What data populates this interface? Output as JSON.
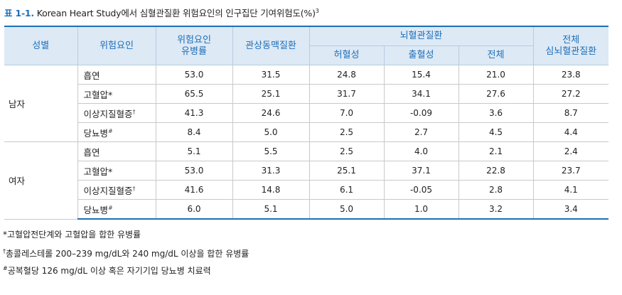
{
  "caption": {
    "label": "표 1-1.",
    "text": "Korean Heart Study에서 심혈관질환 위험요인의 인구집단 기여위험도(%)",
    "sup": "3"
  },
  "headers": {
    "sex": "성별",
    "risk_factor": "위험요인",
    "prevalence_l1": "위험요인",
    "prevalence_l2": "유병률",
    "coronary": "관상동맥질환",
    "cerebro": "뇌혈관질환",
    "ischemic": "허혈성",
    "hemorrhagic": "출혈성",
    "cerebro_total": "전체",
    "total_l1": "전체",
    "total_l2": "심뇌혈관질환"
  },
  "groups": [
    {
      "sex": "남자",
      "rows": [
        {
          "factor": "흡연",
          "mark": "",
          "values": [
            "53.0",
            "31.5",
            "24.8",
            "15.4",
            "21.0",
            "23.8"
          ]
        },
        {
          "factor": "고혈압*",
          "mark": "",
          "values": [
            "65.5",
            "25.1",
            "31.7",
            "34.1",
            "27.6",
            "27.2"
          ]
        },
        {
          "factor": "이상지질혈증",
          "mark": "†",
          "values": [
            "41.3",
            "24.6",
            "7.0",
            "-0.09",
            "3.6",
            "8.7"
          ]
        },
        {
          "factor": "당뇨병",
          "mark": "#",
          "values": [
            "8.4",
            "5.0",
            "2.5",
            "2.7",
            "4.5",
            "4.4"
          ]
        }
      ]
    },
    {
      "sex": "여자",
      "rows": [
        {
          "factor": "흡연",
          "mark": "",
          "values": [
            "5.1",
            "5.5",
            "2.5",
            "4.0",
            "2.1",
            "2.4"
          ]
        },
        {
          "factor": "고혈압*",
          "mark": "",
          "values": [
            "53.0",
            "31.3",
            "25.1",
            "37.1",
            "22.8",
            "23.7"
          ]
        },
        {
          "factor": "이상지질혈증",
          "mark": "†",
          "values": [
            "41.6",
            "14.8",
            "6.1",
            "-0.05",
            "2.8",
            "4.1"
          ]
        },
        {
          "factor": "당뇨병",
          "mark": "#",
          "values": [
            "6.0",
            "5.1",
            "5.0",
            "1.0",
            "3.2",
            "3.4"
          ]
        }
      ]
    }
  ],
  "footnotes": [
    {
      "mark": "",
      "text": "*고혈압전단계와 고혈압을 합한 유병률"
    },
    {
      "mark": "†",
      "text": "총콜레스테롤 200–239 mg/dL와 240 mg/dL 이상을 합한 유병률"
    },
    {
      "mark": "#",
      "text": "공복혈당 126 mg/dL 이상 혹은 자기기입 당뇨병 치료력"
    }
  ]
}
